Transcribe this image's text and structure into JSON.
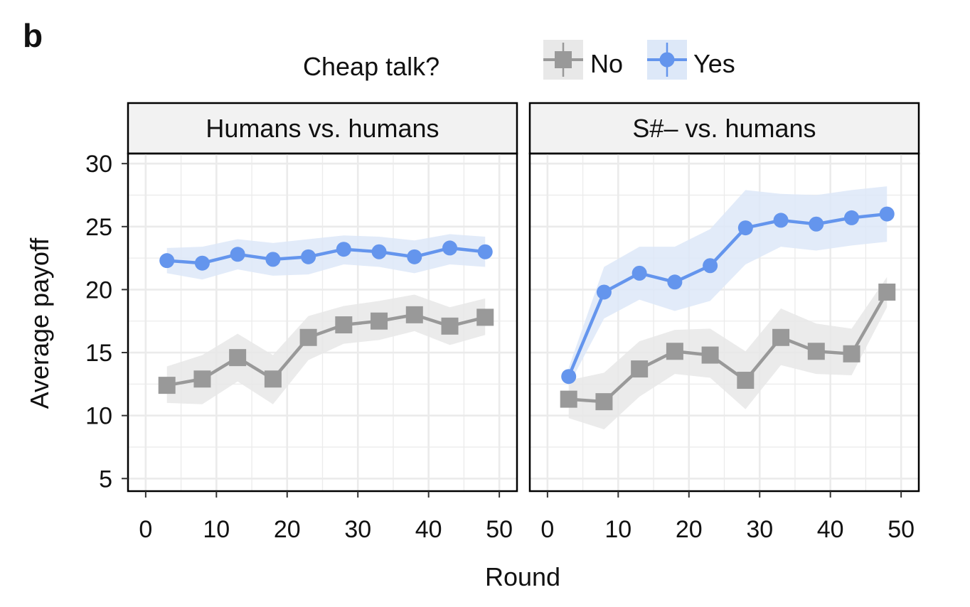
{
  "panel_label": "b",
  "legend": {
    "title": "Cheap talk?",
    "items": [
      {
        "label": "No",
        "color": "#999999",
        "marker": "square"
      },
      {
        "label": "Yes",
        "color": "#6495ed",
        "marker": "circle"
      }
    ],
    "placement": "top"
  },
  "chart_data": {
    "type": "line",
    "xlabel": "Round",
    "ylabel": "Average payoff",
    "xlim": [
      -2.5,
      52.5
    ],
    "ylim": [
      4,
      30.8
    ],
    "xticks": [
      0,
      10,
      20,
      30,
      40,
      50
    ],
    "yticks": [
      5,
      10,
      15,
      20,
      25,
      30
    ],
    "grid": true,
    "colors": {
      "No": "#999999",
      "Yes": "#6495ed",
      "No_band": "#e8e8e8",
      "Yes_band": "#dde8f8"
    },
    "panels": [
      {
        "title": "Humans vs. humans",
        "series": [
          {
            "name": "No",
            "x": [
              3,
              8,
              13,
              18,
              23,
              28,
              33,
              38,
              43,
              48
            ],
            "values": [
              12.4,
              12.9,
              14.6,
              12.9,
              16.2,
              17.2,
              17.5,
              18.0,
              17.1,
              17.8
            ],
            "lower": [
              11.0,
              10.9,
              12.7,
              10.9,
              14.4,
              15.7,
              16.0,
              16.7,
              15.6,
              16.4
            ],
            "upper": [
              13.9,
              14.8,
              16.5,
              14.8,
              17.9,
              18.7,
              19.1,
              19.6,
              18.6,
              19.3
            ]
          },
          {
            "name": "Yes",
            "x": [
              3,
              8,
              13,
              18,
              23,
              28,
              33,
              38,
              43,
              48
            ],
            "values": [
              22.3,
              22.1,
              22.8,
              22.4,
              22.6,
              23.2,
              23.0,
              22.6,
              23.3,
              23.0
            ],
            "lower": [
              21.3,
              20.8,
              21.6,
              21.1,
              21.2,
              22.0,
              21.8,
              21.3,
              22.0,
              21.8
            ],
            "upper": [
              23.3,
              23.4,
              24.0,
              23.7,
              24.0,
              24.3,
              24.2,
              23.9,
              24.4,
              24.2
            ]
          }
        ]
      },
      {
        "title": "S#– vs. humans",
        "series": [
          {
            "name": "No",
            "x": [
              3,
              8,
              13,
              18,
              23,
              28,
              33,
              38,
              43,
              48
            ],
            "values": [
              11.3,
              11.1,
              13.7,
              15.1,
              14.8,
              12.8,
              16.2,
              15.1,
              14.9,
              19.8
            ],
            "lower": [
              9.8,
              8.9,
              11.5,
              13.3,
              13.0,
              10.5,
              14.0,
              13.3,
              13.2,
              18.6
            ],
            "upper": [
              12.8,
              13.4,
              15.9,
              16.8,
              16.9,
              15.1,
              18.5,
              17.3,
              16.9,
              21.0
            ]
          },
          {
            "name": "Yes",
            "x": [
              3,
              8,
              13,
              18,
              23,
              28,
              33,
              38,
              43,
              48
            ],
            "values": [
              13.1,
              19.8,
              21.3,
              20.6,
              21.9,
              24.9,
              25.5,
              25.2,
              25.7,
              26.0
            ],
            "lower": [
              12.4,
              17.7,
              19.2,
              18.3,
              19.1,
              22.0,
              23.4,
              23.1,
              23.5,
              23.8
            ],
            "upper": [
              13.8,
              21.8,
              23.4,
              23.4,
              24.8,
              27.9,
              27.6,
              27.5,
              27.9,
              28.2
            ]
          }
        ]
      }
    ]
  }
}
